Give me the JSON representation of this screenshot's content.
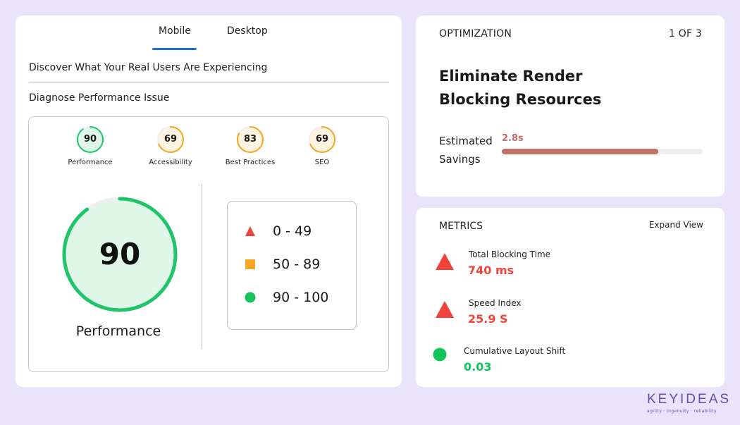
{
  "tabs": [
    {
      "label": "Mobile",
      "active": true
    },
    {
      "label": "Desktop",
      "active": false
    }
  ],
  "links": {
    "discover": "Discover What Your Real Users Are Experiencing",
    "diagnose": "Diagnose Performance Issue"
  },
  "scores": [
    {
      "value": "90",
      "label": "Performance",
      "fraction": 0.9,
      "color": "#20c46a",
      "fill": "#dff7e8"
    },
    {
      "value": "69",
      "label": "Accessibility",
      "fraction": 0.69,
      "color": "#f5a623",
      "fill": "#fff4e1"
    },
    {
      "value": "83",
      "label": "Best Practices",
      "fraction": 0.83,
      "color": "#f5a623",
      "fill": "#fff4e1"
    },
    {
      "value": "69",
      "label": "SEO",
      "fraction": 0.69,
      "color": "#f5a623",
      "fill": "#fff4e1"
    }
  ],
  "main_gauge": {
    "value": "90",
    "label": "Performance",
    "fraction": 0.9,
    "color": "#20c46a",
    "fill": "#dff7e8"
  },
  "legend": [
    {
      "range": "0 - 49",
      "icon": "triangle-icon",
      "color": "#f0433a"
    },
    {
      "range": "50 - 89",
      "icon": "square-icon",
      "color": "#f5a623"
    },
    {
      "range": "90 - 100",
      "icon": "circle-icon",
      "color": "#12c45a"
    }
  ],
  "optimization": {
    "header": "OPTIMIZATION",
    "page": "1 OF 3",
    "title": "Eliminate Render Blocking Resources",
    "savings_label": "Estimated Savings",
    "savings_value": "2.8s",
    "savings_fraction": 0.78,
    "bar_color": "#c46f67"
  },
  "metrics": {
    "header": "METRICS",
    "expand_label": "Expand View",
    "items": [
      {
        "name": "Total Blocking Time",
        "value": "740 ms",
        "icon": "triangle-icon",
        "color": "#f0433a"
      },
      {
        "name": "Speed Index",
        "value": "25.9 S",
        "icon": "triangle-icon",
        "color": "#f0433a"
      },
      {
        "name": "Cumulative Layout Shift",
        "value": "0.03",
        "icon": "circle-icon",
        "color": "#12c45a"
      }
    ]
  },
  "logo": {
    "word": "KEYIDEAS",
    "tagline": "agility · ingenuity · reliability"
  }
}
